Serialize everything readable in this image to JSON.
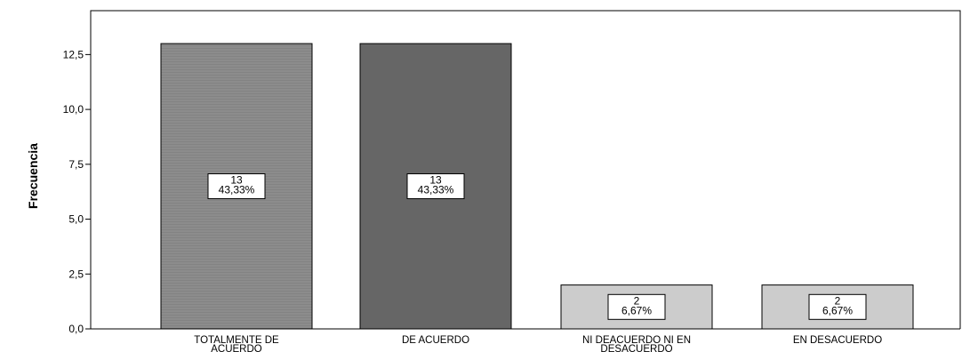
{
  "chart_data": {
    "type": "bar",
    "title": "",
    "xlabel": "",
    "ylabel": "Frecuencia",
    "ylim": [
      0,
      14.5
    ],
    "yticks": [
      "0,0",
      "2,5",
      "5,0",
      "7,5",
      "10,0",
      "12,5"
    ],
    "ytick_values": [
      0,
      2.5,
      5,
      7.5,
      10,
      12.5
    ],
    "grid": false,
    "categories": [
      [
        "TOTALMENTE DE",
        "ACUERDO"
      ],
      [
        "DE ACUERDO"
      ],
      [
        "NI DEACUERDO NI EN",
        "DESACUERDO"
      ],
      [
        "EN DESACUERDO"
      ]
    ],
    "values": [
      13,
      13,
      2,
      2
    ],
    "data_labels": [
      [
        "13",
        "43,33%"
      ],
      [
        "13",
        "43,33%"
      ],
      [
        "2",
        "6,67%"
      ],
      [
        "2",
        "6,67%"
      ]
    ],
    "colors": [
      "#8a8a8a",
      "#666666",
      "#cccccc",
      "#cccccc"
    ]
  }
}
